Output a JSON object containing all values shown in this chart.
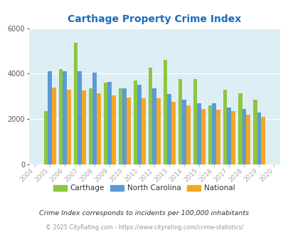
{
  "title": "Carthage Property Crime Index",
  "years_with_data": [
    2005,
    2006,
    2007,
    2008,
    2009,
    2010,
    2011,
    2012,
    2013,
    2014,
    2015,
    2016,
    2017,
    2018,
    2019
  ],
  "carthage": [
    2350,
    4200,
    5350,
    3350,
    3600,
    3350,
    3700,
    4250,
    4600,
    3750,
    3750,
    2600,
    3300,
    3150,
    2850
  ],
  "north_carolina": [
    4100,
    4100,
    4100,
    4050,
    3650,
    3350,
    3500,
    3350,
    3100,
    2850,
    2700,
    2700,
    2500,
    2450,
    2300
  ],
  "national": [
    3400,
    3300,
    3250,
    3150,
    3050,
    2950,
    2900,
    2900,
    2750,
    2600,
    2450,
    2400,
    2350,
    2200,
    2100
  ],
  "colors": {
    "carthage": "#8dc63f",
    "north_carolina": "#5b9bd5",
    "national": "#f5a623"
  },
  "ylim": [
    0,
    6000
  ],
  "yticks": [
    0,
    2000,
    4000,
    6000
  ],
  "xlim_min": 2003.6,
  "xlim_max": 2020.4,
  "all_x_ticks": [
    2004,
    2005,
    2006,
    2007,
    2008,
    2009,
    2010,
    2011,
    2012,
    2013,
    2014,
    2015,
    2016,
    2017,
    2018,
    2019,
    2020
  ],
  "background_color": "#deeef5",
  "title_color": "#1a6ebd",
  "legend_labels": [
    "Carthage",
    "North Carolina",
    "National"
  ],
  "footnote1": "Crime Index corresponds to incidents per 100,000 inhabitants",
  "footnote2": "© 2025 CityRating.com - https://www.cityrating.com/crime-statistics/",
  "bar_width": 0.27
}
